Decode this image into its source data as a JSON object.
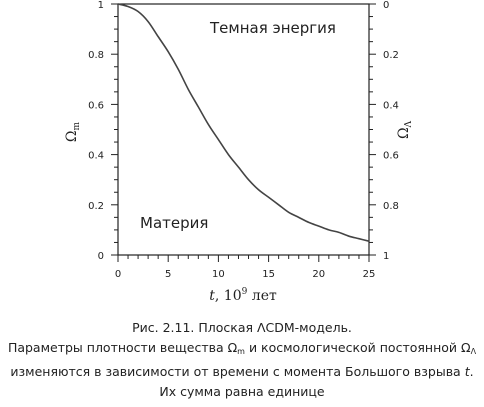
{
  "chart_data": {
    "type": "line",
    "xlabel": {
      "var": "t",
      "sep": ", ",
      "base": "10",
      "exp": "9",
      "unit": " лет"
    },
    "ylabel_left": {
      "sym": "Ω",
      "sub": "m"
    },
    "ylabel_right": {
      "sym": "Ω",
      "sub": "Λ"
    },
    "xlim": [
      0,
      25
    ],
    "ylim_left": [
      0,
      1
    ],
    "ylim_right": [
      1,
      0
    ],
    "x_ticks": [
      "0",
      "5",
      "10",
      "15",
      "20",
      "25"
    ],
    "y_ticks_left": [
      "0",
      "0.2",
      "0.4",
      "0.6",
      "0.8",
      "1"
    ],
    "y_ticks_right": [
      "0",
      "0.2",
      "0.4",
      "0.6",
      "0.8",
      "1"
    ],
    "annotations": {
      "upper": "Темная энергия",
      "lower": "Материя"
    },
    "series": [
      {
        "x": [
          0,
          1,
          2,
          3,
          4,
          5,
          6,
          7,
          8,
          9,
          10,
          11,
          12,
          13,
          14,
          15,
          16,
          17,
          18,
          19,
          20,
          21,
          22,
          23,
          24,
          25
        ],
        "y": [
          1.0,
          0.99,
          0.97,
          0.93,
          0.87,
          0.81,
          0.74,
          0.66,
          0.59,
          0.52,
          0.46,
          0.4,
          0.35,
          0.3,
          0.26,
          0.23,
          0.2,
          0.17,
          0.15,
          0.13,
          0.115,
          0.1,
          0.09,
          0.075,
          0.065,
          0.055
        ],
        "color": "#444444"
      }
    ]
  },
  "caption": {
    "line1": "Рис. 2.11. Плоская ΛCDM-модель.",
    "line2_a": "Параметры плотности вещества ",
    "line2_sym1": "Ω",
    "line2_sub1": "m",
    "line2_b": " и космологической постоянной ",
    "line2_sym2": "Ω",
    "line2_sub2": "Λ",
    "line3_a": "изменяются в зависимости от времени с момента Большого взрыва ",
    "line3_t": "t",
    "line3_b": ".",
    "line4": "Их сумма равна единице"
  }
}
